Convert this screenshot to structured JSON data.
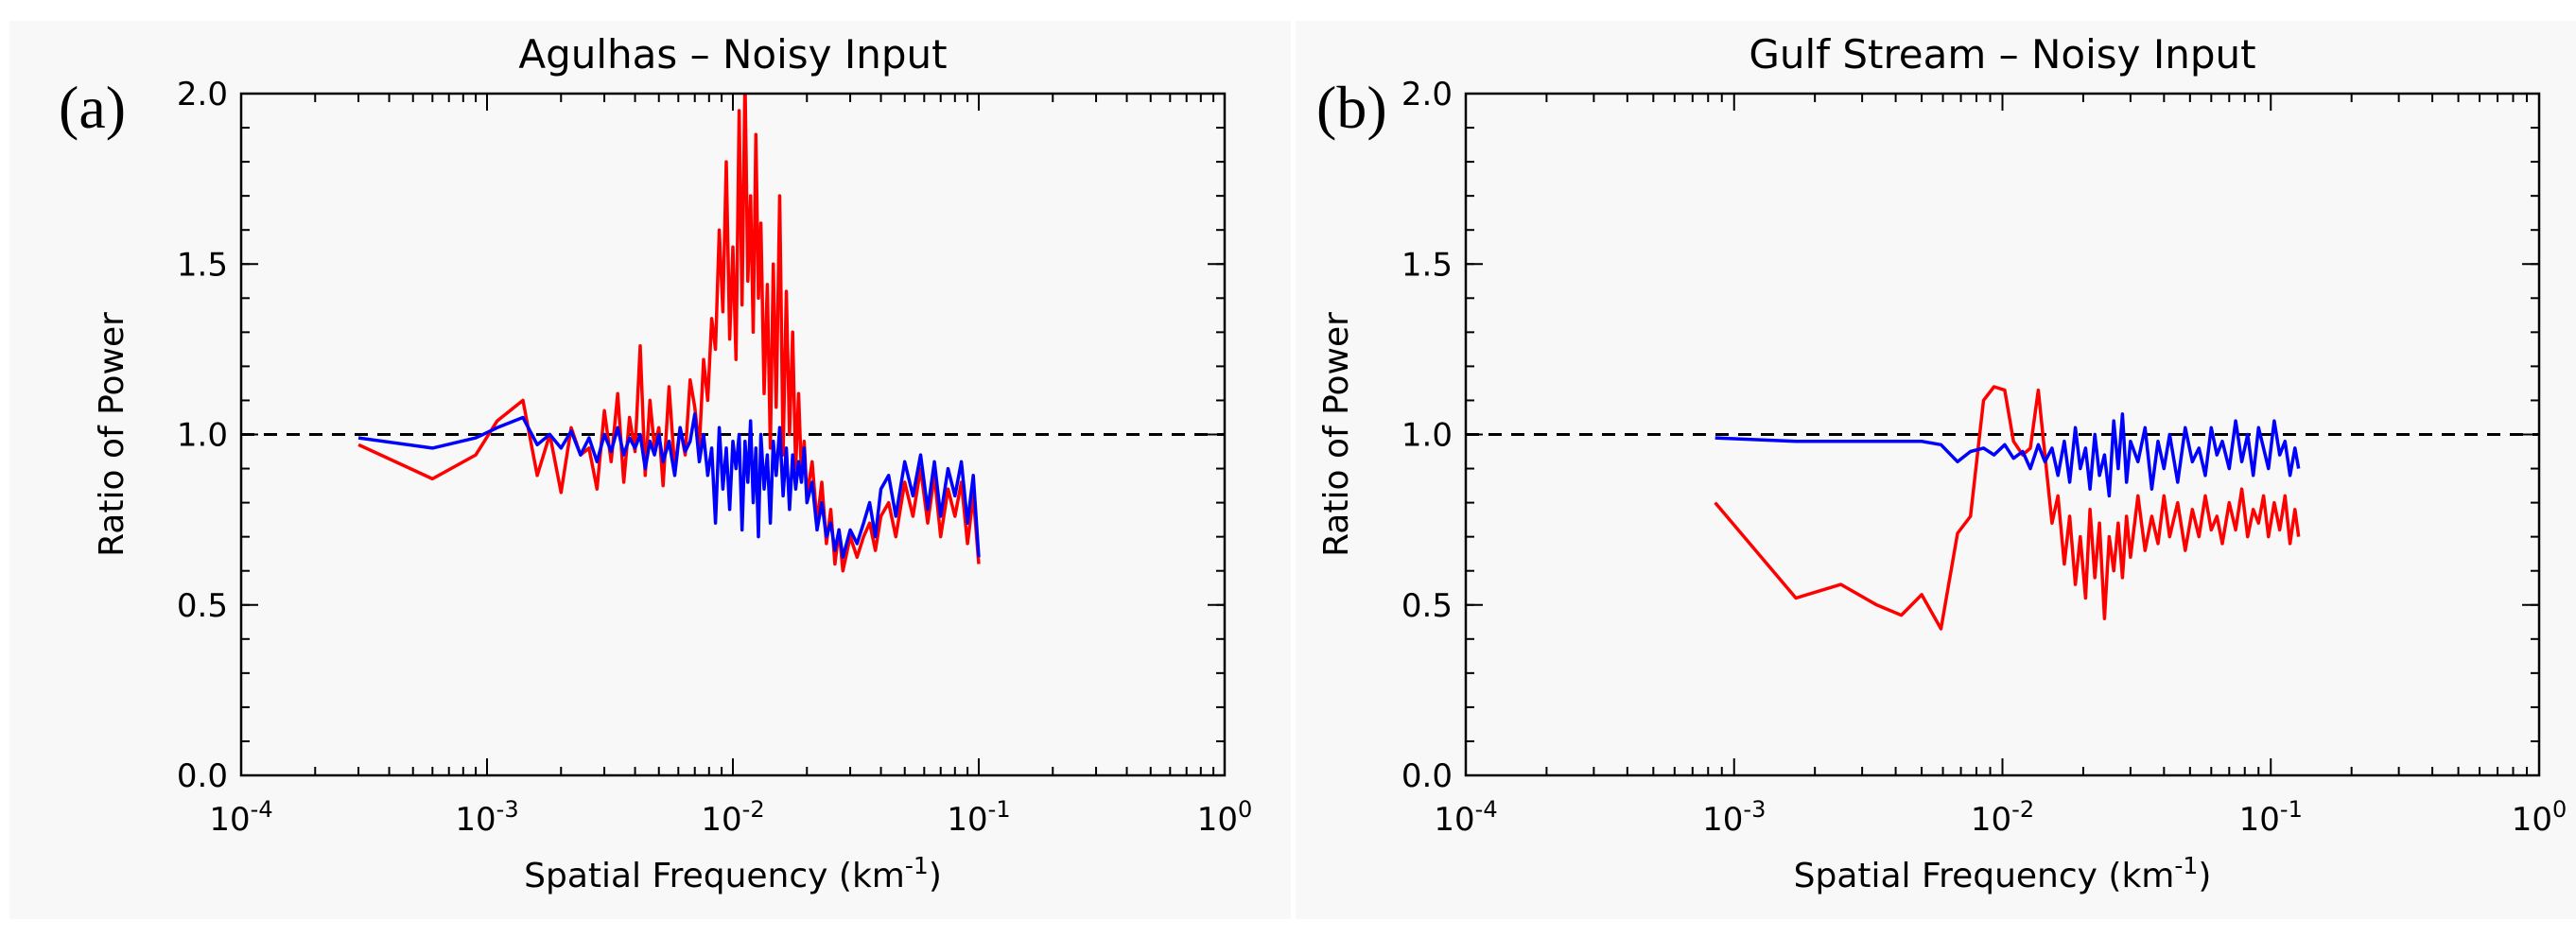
{
  "chart_data": [
    {
      "type": "line",
      "panel_label": "(a)",
      "title": "Agulhas – Noisy Input",
      "xlabel": "Spatial Frequency",
      "xlabel_unit": "(km",
      "xlabel_unit_exp": "-1",
      "xlabel_unit_end": ")",
      "ylabel": "Ratio of Power",
      "xscale": "log",
      "xlim": [
        0.0001,
        1
      ],
      "ylim": [
        0.0,
        2.0
      ],
      "x_ticks": [
        {
          "base": "10",
          "exp": "-4",
          "value": 0.0001
        },
        {
          "base": "10",
          "exp": "-3",
          "value": 0.001
        },
        {
          "base": "10",
          "exp": "-2",
          "value": 0.01
        },
        {
          "base": "10",
          "exp": "-1",
          "value": 0.1
        },
        {
          "base": "10",
          "exp": "0",
          "value": 1
        }
      ],
      "y_ticks": [
        {
          "label": "0.0",
          "value": 0.0
        },
        {
          "label": "0.5",
          "value": 0.5
        },
        {
          "label": "1.0",
          "value": 1.0
        },
        {
          "label": "1.5",
          "value": 1.5
        },
        {
          "label": "2.0",
          "value": 2.0
        }
      ],
      "reference_line": {
        "y": 1.0,
        "style": "dashed",
        "color": "#000000"
      },
      "series": [
        {
          "name": "red",
          "color": "#ff0000",
          "x": [
            0.0003,
            0.0006,
            0.0009,
            0.0011,
            0.0014,
            0.0016,
            0.0018,
            0.002,
            0.0022,
            0.0024,
            0.0026,
            0.0028,
            0.003,
            0.0032,
            0.0034,
            0.0036,
            0.0038,
            0.004,
            0.0042,
            0.0044,
            0.0046,
            0.0048,
            0.005,
            0.0052,
            0.0055,
            0.0058,
            0.0061,
            0.0064,
            0.0067,
            0.007,
            0.0073,
            0.0076,
            0.0079,
            0.0082,
            0.0085,
            0.0088,
            0.0091,
            0.0094,
            0.0097,
            0.01,
            0.0103,
            0.0106,
            0.0109,
            0.0112,
            0.0115,
            0.0118,
            0.0121,
            0.0124,
            0.0127,
            0.013,
            0.0134,
            0.0138,
            0.0142,
            0.0146,
            0.015,
            0.0155,
            0.016,
            0.0165,
            0.017,
            0.0175,
            0.018,
            0.0185,
            0.019,
            0.0195,
            0.02,
            0.021,
            0.022,
            0.023,
            0.024,
            0.025,
            0.026,
            0.027,
            0.028,
            0.03,
            0.032,
            0.034,
            0.036,
            0.038,
            0.04,
            0.043,
            0.046,
            0.05,
            0.054,
            0.058,
            0.062,
            0.066,
            0.07,
            0.075,
            0.08,
            0.085,
            0.09,
            0.095,
            0.1
          ],
          "values": [
            0.97,
            0.87,
            0.94,
            1.04,
            1.1,
            0.88,
            1.0,
            0.83,
            1.02,
            0.94,
            0.96,
            0.84,
            1.07,
            0.92,
            1.12,
            0.86,
            1.05,
            0.95,
            1.26,
            0.88,
            1.1,
            0.96,
            1.02,
            0.85,
            1.14,
            0.9,
            1.02,
            0.94,
            1.16,
            1.08,
            0.96,
            1.22,
            1.1,
            1.34,
            1.25,
            1.6,
            1.36,
            1.8,
            1.28,
            1.55,
            1.22,
            1.95,
            1.38,
            2.05,
            1.45,
            1.7,
            1.3,
            1.88,
            1.4,
            1.62,
            1.12,
            1.44,
            0.96,
            1.5,
            1.08,
            1.7,
            0.94,
            1.42,
            1.0,
            1.3,
            0.9,
            1.12,
            0.88,
            0.98,
            0.82,
            0.92,
            0.74,
            0.86,
            0.68,
            0.78,
            0.62,
            0.72,
            0.6,
            0.7,
            0.64,
            0.7,
            0.74,
            0.66,
            0.76,
            0.8,
            0.7,
            0.86,
            0.76,
            0.9,
            0.74,
            0.88,
            0.7,
            0.84,
            0.76,
            0.86,
            0.68,
            0.82,
            0.62
          ]
        },
        {
          "name": "blue",
          "color": "#0000ff",
          "x": [
            0.0003,
            0.0006,
            0.0009,
            0.0011,
            0.0014,
            0.0016,
            0.0018,
            0.002,
            0.0022,
            0.0024,
            0.0026,
            0.0028,
            0.003,
            0.0032,
            0.0034,
            0.0036,
            0.0038,
            0.004,
            0.0042,
            0.0044,
            0.0046,
            0.0048,
            0.005,
            0.0052,
            0.0055,
            0.0058,
            0.0061,
            0.0064,
            0.0067,
            0.007,
            0.0073,
            0.0076,
            0.0079,
            0.0082,
            0.0085,
            0.0088,
            0.0091,
            0.0094,
            0.0097,
            0.01,
            0.0103,
            0.0106,
            0.0109,
            0.0112,
            0.0115,
            0.0118,
            0.0121,
            0.0124,
            0.0127,
            0.013,
            0.0134,
            0.0138,
            0.0142,
            0.0146,
            0.015,
            0.0155,
            0.016,
            0.0165,
            0.017,
            0.0175,
            0.018,
            0.0185,
            0.019,
            0.0195,
            0.02,
            0.021,
            0.022,
            0.023,
            0.024,
            0.025,
            0.026,
            0.027,
            0.028,
            0.03,
            0.032,
            0.034,
            0.036,
            0.038,
            0.04,
            0.043,
            0.046,
            0.05,
            0.054,
            0.058,
            0.062,
            0.066,
            0.07,
            0.075,
            0.08,
            0.085,
            0.09,
            0.095,
            0.1
          ],
          "values": [
            0.99,
            0.96,
            0.99,
            1.02,
            1.05,
            0.97,
            1.0,
            0.96,
            1.01,
            0.94,
            0.99,
            0.92,
            1.0,
            0.95,
            1.02,
            0.94,
            0.99,
            0.96,
            1.0,
            0.9,
            0.98,
            0.94,
            1.0,
            0.92,
            0.98,
            0.88,
            1.02,
            0.95,
            0.98,
            1.06,
            0.92,
            1.0,
            0.88,
            0.96,
            0.74,
            1.02,
            0.84,
            0.96,
            0.78,
            0.98,
            0.9,
            1.0,
            0.72,
            0.98,
            0.86,
            1.04,
            0.8,
            0.96,
            0.7,
            1.0,
            0.84,
            0.94,
            0.74,
            0.98,
            0.88,
            1.02,
            0.82,
            0.96,
            0.78,
            0.94,
            0.84,
            0.92,
            0.86,
            0.96,
            0.8,
            0.86,
            0.72,
            0.8,
            0.7,
            0.74,
            0.66,
            0.72,
            0.64,
            0.72,
            0.68,
            0.74,
            0.8,
            0.7,
            0.84,
            0.88,
            0.76,
            0.92,
            0.82,
            0.94,
            0.78,
            0.92,
            0.76,
            0.9,
            0.82,
            0.92,
            0.74,
            0.88,
            0.64
          ]
        }
      ]
    },
    {
      "type": "line",
      "panel_label": "(b)",
      "title": "Gulf Stream – Noisy Input",
      "xlabel": "Spatial Frequency",
      "xlabel_unit": "(km",
      "xlabel_unit_exp": "-1",
      "xlabel_unit_end": ")",
      "ylabel": "Ratio of Power",
      "xscale": "log",
      "xlim": [
        0.0001,
        1
      ],
      "ylim": [
        0.0,
        2.0
      ],
      "x_ticks": [
        {
          "base": "10",
          "exp": "-4",
          "value": 0.0001
        },
        {
          "base": "10",
          "exp": "-3",
          "value": 0.001
        },
        {
          "base": "10",
          "exp": "-2",
          "value": 0.01
        },
        {
          "base": "10",
          "exp": "-1",
          "value": 0.1
        },
        {
          "base": "10",
          "exp": "0",
          "value": 1
        }
      ],
      "y_ticks": [
        {
          "label": "0.0",
          "value": 0.0
        },
        {
          "label": "0.5",
          "value": 0.5
        },
        {
          "label": "1.0",
          "value": 1.0
        },
        {
          "label": "1.5",
          "value": 1.5
        },
        {
          "label": "2.0",
          "value": 2.0
        }
      ],
      "reference_line": {
        "y": 1.0,
        "style": "dashed",
        "color": "#000000"
      },
      "series": [
        {
          "name": "red",
          "color": "#ff0000",
          "x": [
            0.00085,
            0.0017,
            0.0025,
            0.0034,
            0.0042,
            0.005,
            0.0059,
            0.0068,
            0.0076,
            0.0085,
            0.0093,
            0.0102,
            0.011,
            0.0119,
            0.0127,
            0.0136,
            0.0144,
            0.0153,
            0.0161,
            0.017,
            0.0178,
            0.0187,
            0.0195,
            0.0204,
            0.0212,
            0.0221,
            0.023,
            0.024,
            0.025,
            0.026,
            0.027,
            0.028,
            0.029,
            0.03,
            0.032,
            0.034,
            0.036,
            0.038,
            0.04,
            0.042,
            0.045,
            0.048,
            0.051,
            0.054,
            0.057,
            0.06,
            0.063,
            0.066,
            0.07,
            0.074,
            0.078,
            0.082,
            0.086,
            0.09,
            0.094,
            0.098,
            0.103,
            0.108,
            0.113,
            0.118,
            0.123,
            0.127
          ],
          "values": [
            0.8,
            0.52,
            0.56,
            0.5,
            0.47,
            0.53,
            0.43,
            0.71,
            0.76,
            1.1,
            1.14,
            1.13,
            0.98,
            0.94,
            0.96,
            1.13,
            0.94,
            0.74,
            0.82,
            0.62,
            0.76,
            0.56,
            0.7,
            0.52,
            0.78,
            0.58,
            0.74,
            0.46,
            0.7,
            0.6,
            0.74,
            0.58,
            0.76,
            0.64,
            0.82,
            0.66,
            0.76,
            0.68,
            0.82,
            0.7,
            0.8,
            0.66,
            0.78,
            0.7,
            0.82,
            0.72,
            0.76,
            0.68,
            0.8,
            0.72,
            0.84,
            0.7,
            0.78,
            0.74,
            0.82,
            0.7,
            0.8,
            0.72,
            0.82,
            0.68,
            0.78,
            0.7
          ]
        },
        {
          "name": "blue",
          "color": "#0000ff",
          "x": [
            0.00085,
            0.0017,
            0.0025,
            0.0034,
            0.0042,
            0.005,
            0.0059,
            0.0068,
            0.0076,
            0.0085,
            0.0093,
            0.0102,
            0.011,
            0.0119,
            0.0127,
            0.0136,
            0.0144,
            0.0153,
            0.0161,
            0.017,
            0.0178,
            0.0187,
            0.0195,
            0.0204,
            0.0212,
            0.0221,
            0.023,
            0.024,
            0.025,
            0.026,
            0.027,
            0.028,
            0.029,
            0.03,
            0.032,
            0.034,
            0.036,
            0.038,
            0.04,
            0.042,
            0.045,
            0.048,
            0.051,
            0.054,
            0.057,
            0.06,
            0.063,
            0.066,
            0.07,
            0.074,
            0.078,
            0.082,
            0.086,
            0.09,
            0.094,
            0.098,
            0.103,
            0.108,
            0.113,
            0.118,
            0.123,
            0.127
          ],
          "values": [
            0.99,
            0.98,
            0.98,
            0.98,
            0.98,
            0.98,
            0.97,
            0.92,
            0.95,
            0.96,
            0.94,
            0.97,
            0.93,
            0.95,
            0.9,
            0.97,
            0.92,
            0.96,
            0.88,
            0.98,
            0.86,
            1.02,
            0.9,
            0.96,
            0.84,
            1.0,
            0.88,
            0.94,
            0.82,
            1.04,
            0.9,
            1.06,
            0.86,
            0.98,
            0.92,
            1.02,
            0.84,
            0.98,
            0.9,
            1.0,
            0.86,
            1.02,
            0.92,
            0.96,
            0.88,
            1.02,
            0.94,
            0.98,
            0.9,
            1.04,
            0.92,
            1.0,
            0.88,
            1.02,
            0.96,
            0.9,
            1.04,
            0.94,
            0.98,
            0.88,
            0.96,
            0.9
          ]
        }
      ]
    }
  ]
}
